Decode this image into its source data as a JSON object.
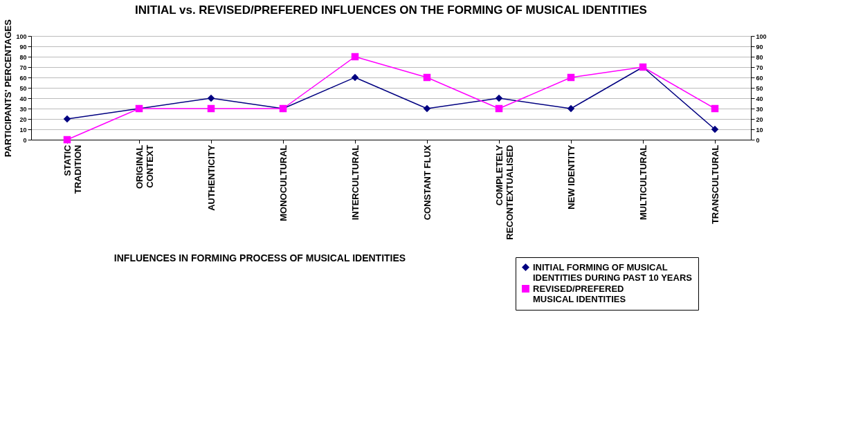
{
  "chart_data": {
    "type": "line",
    "title": "INITIAL vs. REVISED/PREFERED INFLUENCES ON THE FORMING OF MUSICAL IDENTITIES",
    "xlabel": "INFLUENCES IN FORMING PROCESS OF MUSICAL IDENTITIES",
    "ylabel": "PARTICIPANTS' PERCENTAGES",
    "categories": [
      "STATIC TRADITION",
      "ORIGINAL CONTEXT",
      "AUTHENTICITY",
      "MONOCULTURAL",
      "INTERCULTURAL",
      "CONSTANT FLUX",
      "COMPLETELY RECONTEXTUALISED",
      "NEW IDENTITY",
      "MULTICULTURAL",
      "TRANSCULTURAL"
    ],
    "series": [
      {
        "name": "INITIAL FORMING OF MUSICAL IDENTITIES DURING PAST 10 YEARS",
        "color": "#000080",
        "marker": "diamond",
        "values": [
          20,
          30,
          40,
          30,
          60,
          30,
          40,
          30,
          70,
          10
        ]
      },
      {
        "name": "REVISED/PREFERED MUSICAL IDENTITIES",
        "color": "#ff00ff",
        "marker": "square",
        "values": [
          0,
          30,
          30,
          30,
          80,
          60,
          30,
          60,
          70,
          30
        ]
      }
    ],
    "ylim": [
      0,
      100
    ],
    "yticks": [
      0,
      10,
      20,
      30,
      40,
      50,
      60,
      70,
      80,
      90,
      100
    ],
    "y2lim": [
      0,
      100
    ],
    "y2ticks": [
      0,
      10,
      20,
      30,
      40,
      50,
      60,
      70,
      80,
      90,
      100
    ],
    "grid": "y",
    "legend": "bottom right",
    "line_style": "solid"
  }
}
